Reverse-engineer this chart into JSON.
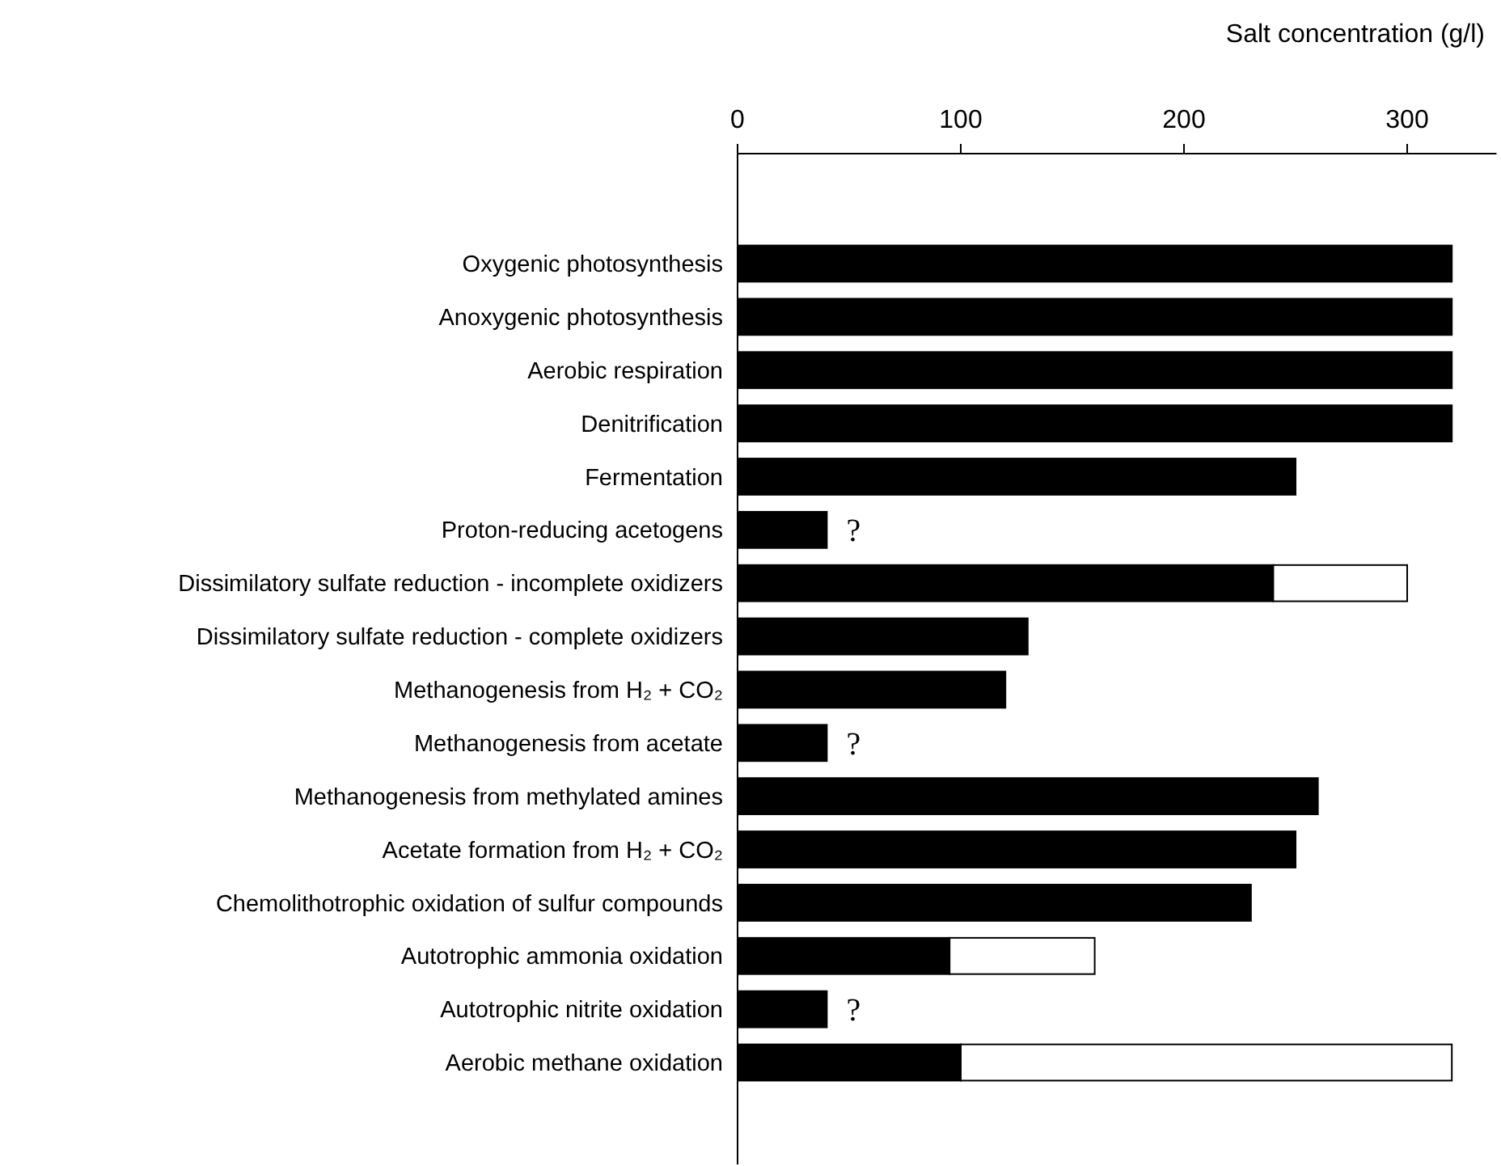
{
  "chart_data": {
    "type": "bar",
    "orientation": "horizontal",
    "stacked": true,
    "xlabel": "Salt concentration (g/l)",
    "categories": [
      "Oxygenic photosynthesis",
      "Anoxygenic photosynthesis",
      "Aerobic respiration",
      "Denitrification",
      "Fermentation",
      "Proton-reducing acetogens",
      "Dissimilatory sulfate reduction - incomplete oxidizers",
      "Dissimilatory sulfate reduction - complete oxidizers",
      "Methanogenesis from H₂ + CO₂",
      "Methanogenesis from acetate",
      "Methanogenesis from methylated amines",
      "Acetate formation from H₂ + CO₂",
      "Chemolithotrophic oxidation of sulfur compounds",
      "Autotrophic ammonia oxidation",
      "Autotrophic nitrite oxidation",
      "Aerobic methane oxidation"
    ],
    "series": [
      {
        "color": "#000000",
        "values": [
          320,
          320,
          320,
          320,
          250,
          40,
          240,
          130,
          120,
          40,
          260,
          250,
          230,
          95,
          40,
          100
        ],
        "value_labels": [
          null,
          null,
          null,
          null,
          null,
          "?",
          null,
          null,
          null,
          "?",
          null,
          null,
          null,
          null,
          "?",
          null
        ]
      },
      {
        "color": "#ffffff",
        "values": [
          null,
          null,
          null,
          null,
          null,
          null,
          60,
          null,
          null,
          null,
          null,
          null,
          null,
          65,
          null,
          220
        ]
      }
    ],
    "xlim": [
      0,
      340
    ],
    "xticks": [
      0,
      100,
      200,
      300
    ]
  }
}
